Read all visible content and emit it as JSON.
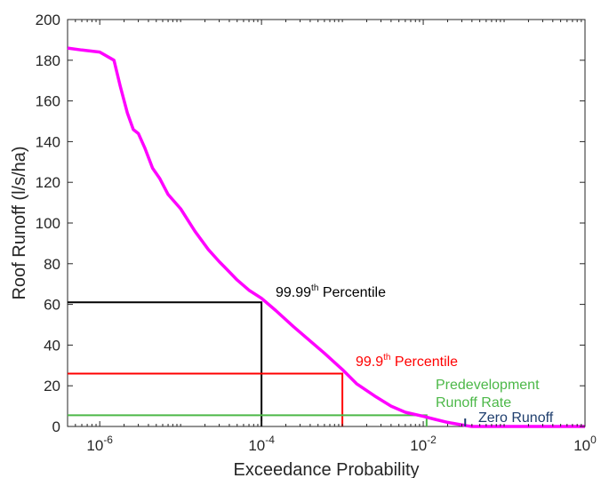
{
  "chart_data": {
    "type": "line",
    "xscale": "log",
    "xlabel": "Exceedance Probability",
    "ylabel": "Roof Runoff (l/s/ha)",
    "xlim": [
      4e-07,
      1
    ],
    "ylim": [
      0,
      200
    ],
    "grid": false,
    "x_tick_labels": [
      {
        "value": 1e-06,
        "base": "10",
        "exp": "-6"
      },
      {
        "value": 0.0001,
        "base": "10",
        "exp": "-4"
      },
      {
        "value": 0.01,
        "base": "10",
        "exp": "-2"
      },
      {
        "value": 1,
        "base": "10",
        "exp": "0"
      }
    ],
    "y_ticks": [
      0,
      20,
      40,
      60,
      80,
      100,
      120,
      140,
      160,
      180,
      200
    ],
    "series": [
      {
        "color": "#ff00ff",
        "x": [
          4e-07,
          6e-07,
          1e-06,
          1.5e-06,
          1.8e-06,
          2.2e-06,
          2.6e-06,
          3e-06,
          3.6e-06,
          4.5e-06,
          5.5e-06,
          7e-06,
          1e-05,
          1.5e-05,
          2.2e-05,
          3e-05,
          4e-05,
          5e-05,
          7e-05,
          0.0001,
          0.00015,
          0.00025,
          0.0004,
          0.0006,
          0.001,
          0.0015,
          0.0025,
          0.004,
          0.006,
          0.01,
          0.014,
          0.02,
          0.028,
          0.035,
          0.04,
          0.1,
          1
        ],
        "y": [
          186,
          185,
          184,
          180,
          167,
          154,
          146,
          144,
          137,
          127,
          122,
          114,
          107,
          96,
          87,
          81,
          76,
          72,
          67,
          63,
          57,
          49,
          42,
          36,
          28,
          21,
          15,
          10,
          7,
          5,
          3.5,
          2,
          1,
          0.3,
          0,
          0,
          0
        ]
      }
    ],
    "reference_lines": [
      {
        "color": "#000000",
        "x": 0.0001,
        "y": 61
      },
      {
        "color": "#ff0000",
        "x": 0.001,
        "y": 26
      },
      {
        "color": "#4cb848",
        "x": 0.011,
        "y": 5.5
      }
    ],
    "zero_runoff_marker": {
      "color": "#1f3f6e",
      "x": 0.033
    },
    "annotations": [
      {
        "key": "p9999",
        "color": "#000000",
        "main": "99.99",
        "sup": "th",
        "tail": " Percentile"
      },
      {
        "key": "p999",
        "color": "#ff0000",
        "main": "99.9",
        "sup": "th",
        "tail": " Percentile"
      },
      {
        "key": "predev1",
        "color": "#4cb848",
        "text": "Predevelopment"
      },
      {
        "key": "predev2",
        "color": "#4cb848",
        "text": "Runoff Rate"
      },
      {
        "key": "zero",
        "color": "#1f3f6e",
        "text": "Zero Runoff"
      }
    ]
  }
}
